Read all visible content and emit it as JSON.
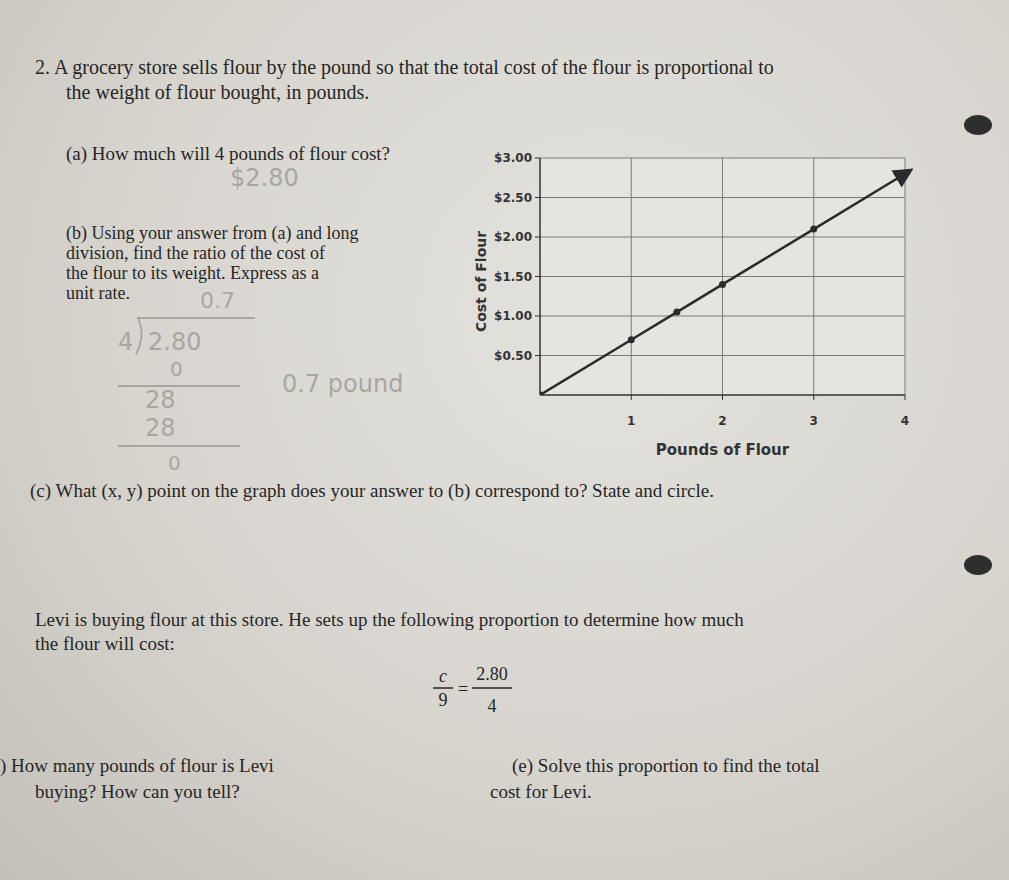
{
  "problem": {
    "intro": [
      "2. A grocery store sells flour by the pound so that the total cost of the flour is proportional to",
      "the weight of flour bought, in pounds."
    ],
    "a": "(a) How much will 4 pounds of flour cost?",
    "a_answer": "$2.80",
    "b": [
      "(b) Using your answer from (a) and long",
      "division, find the ratio of the cost of",
      "the flour to its weight. Express as a",
      "unit rate."
    ],
    "b_work": {
      "quotient": "0.7",
      "divisor": "4",
      "dividend": "2.80",
      "step1": "0",
      "step2": "28",
      "step3": "28",
      "remainder": "0"
    },
    "b_answer": "0.7 pound",
    "c": "(c) What (x, y) point on the graph does your answer to (b) correspond to? State and circle.",
    "levi": [
      "Levi is buying flour at this store. He sets up the following proportion to determine how much",
      "the flour will cost:"
    ],
    "proportion": {
      "left_num": "c",
      "left_den": "9",
      "equals": "=",
      "right_num": "2.80",
      "right_den": "4"
    },
    "d": [
      ") How many pounds of flour is Levi",
      "buying? How can you tell?"
    ],
    "e": [
      "(e) Solve this proportion to find the total",
      "cost for Levi."
    ]
  },
  "chart_data": {
    "type": "line",
    "x_label": "Pounds of Flour",
    "y_label": "Cost of Flour",
    "x": [
      0,
      1,
      1.5,
      2,
      3,
      4
    ],
    "values": [
      0,
      0.7,
      1.05,
      1.4,
      2.1,
      2.8
    ],
    "color": "#2b2b2b",
    "marker": "circle",
    "xlim": [
      0,
      4
    ],
    "ylim": [
      0,
      3
    ],
    "xticks": [
      1,
      2,
      3,
      4
    ],
    "yticks": [
      {
        "value": 0.5,
        "label": "$0.50"
      },
      {
        "value": 1,
        "label": "$1.00"
      },
      {
        "value": 1.5,
        "label": "$1.50"
      },
      {
        "value": 2,
        "label": "$2.00"
      },
      {
        "value": 2.5,
        "label": "$2.50"
      },
      {
        "value": 3,
        "label": "$3.00"
      }
    ],
    "grid": true
  }
}
